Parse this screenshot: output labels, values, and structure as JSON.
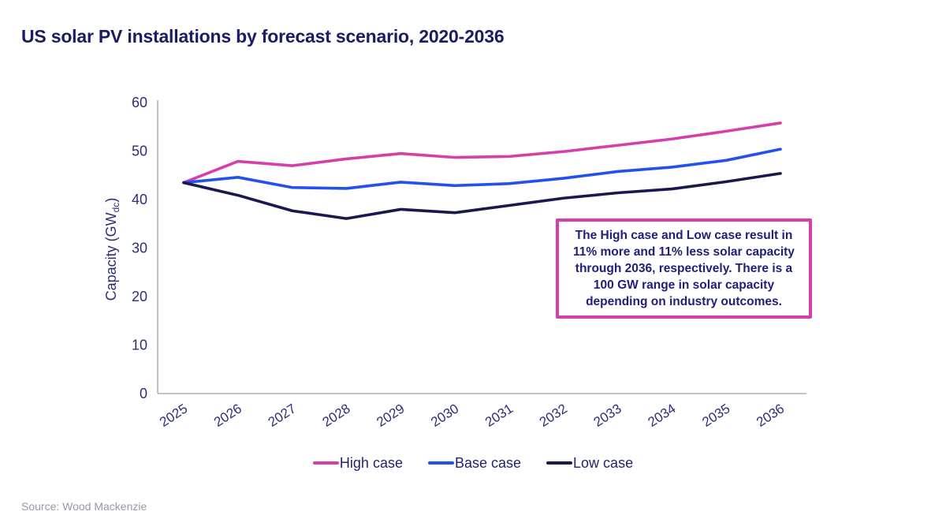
{
  "page": {
    "title": "US solar PV installations by forecast scenario, 2020-2036",
    "source": "Source: Wood Mackenzie"
  },
  "colors": {
    "title_text": "#1b1b66",
    "axis_text": "#2d2d78",
    "axis_line": "#b0b0b5",
    "high_case": "#d53fa8",
    "base_case": "#2450f0",
    "low_case": "#191950",
    "annotation_border": "#d53fa8",
    "annotation_text": "#20207a",
    "source_text": "#9898a8"
  },
  "annotation": {
    "text": "The High case and Low case result in 11% more and 11% less solar capacity through 2036, respectively. There is a 100 GW range in solar capacity depending on industry outcomes."
  },
  "chart_data": {
    "type": "line",
    "title": "US solar PV installations by forecast scenario, 2020-2036",
    "xlabel": "",
    "ylabel": "Capacity (GWdc)",
    "ylabel_parts": {
      "main": "Capacity (GW",
      "sub": "dc",
      "close": ")"
    },
    "x": [
      2025,
      2026,
      2027,
      2028,
      2029,
      2030,
      2031,
      2032,
      2033,
      2034,
      2035,
      2036
    ],
    "y_ticks": [
      0,
      10,
      20,
      30,
      40,
      50,
      60
    ],
    "ylim": [
      0,
      60
    ],
    "grid": false,
    "legend_position": "bottom",
    "series": [
      {
        "name": "High case",
        "color": "#d53fa8",
        "values": [
          43.4,
          47.8,
          46.9,
          48.3,
          49.4,
          48.6,
          48.8,
          49.8,
          51.1,
          52.4,
          54.0,
          55.7
        ]
      },
      {
        "name": "Base case",
        "color": "#2450f0",
        "values": [
          43.4,
          44.5,
          42.4,
          42.2,
          43.5,
          42.8,
          43.2,
          44.3,
          45.7,
          46.6,
          48.0,
          50.3
        ]
      },
      {
        "name": "Low case",
        "color": "#191950",
        "values": [
          43.4,
          40.8,
          37.6,
          36.0,
          37.9,
          37.2,
          38.7,
          40.2,
          41.3,
          42.1,
          43.6,
          45.3
        ]
      }
    ]
  }
}
